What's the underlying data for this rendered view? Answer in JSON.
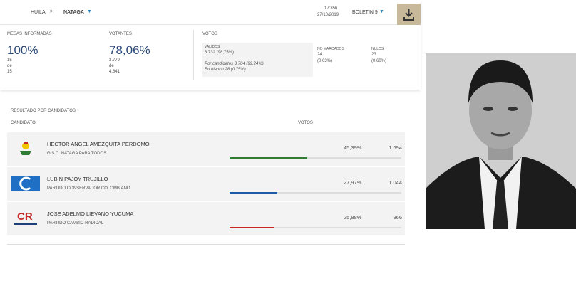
{
  "header": {
    "breadcrumb": [
      "HUILA",
      "NATAGA"
    ],
    "time": "17:35h",
    "date": "27/10/2019",
    "bulletin": "BOLETIN 9"
  },
  "stats": {
    "tables": {
      "title": "MESAS INFORMADAS",
      "value": "100%",
      "count": "15",
      "of": "de",
      "total": "15"
    },
    "voters": {
      "title": "VOTANTES",
      "value": "78,06%",
      "count": "3.779",
      "of": "de",
      "total": "4.841"
    },
    "votes": {
      "title": "VOTOS",
      "valid": {
        "label": "VALIDOS",
        "value": "3.732 (98,75%)",
        "by_candidates": "Por candidatos  3.704 (99,24%)",
        "blank": "En blanco  28 (0,75%)"
      },
      "unmarked": {
        "label": "NO MARCADOS",
        "count": "24",
        "percent": "(0,63%)"
      },
      "null": {
        "label": "NULOS",
        "count": "23",
        "percent": "(0,60%)"
      }
    }
  },
  "results": {
    "title": "RESULTADO POR CANDIDATOS",
    "column_candidate": "CANDIDATO",
    "column_votes": "VOTOS",
    "candidates": [
      {
        "name": "HECTOR ANGEL AMEZQUITA PERDOMO",
        "party": "G.S.C. NATAGA PARA TODOS",
        "percent": 45.39,
        "percent_label": "45,39%",
        "votes": "1.694",
        "color": "#2e7d32"
      },
      {
        "name": "LUBIN PAJOY TRUJILLO",
        "party": "PARTIDO CONSERVADOR COLOMBIANO",
        "percent": 27.97,
        "percent_label": "27,97%",
        "votes": "1.044",
        "color": "#1f5aa6"
      },
      {
        "name": "JOSE ADELMO LIEVANO YUCUMA",
        "party": "PARTIDO CAMBIO RADICAL",
        "percent": 25.88,
        "percent_label": "25,88%",
        "votes": "966",
        "color": "#c62828"
      }
    ]
  }
}
